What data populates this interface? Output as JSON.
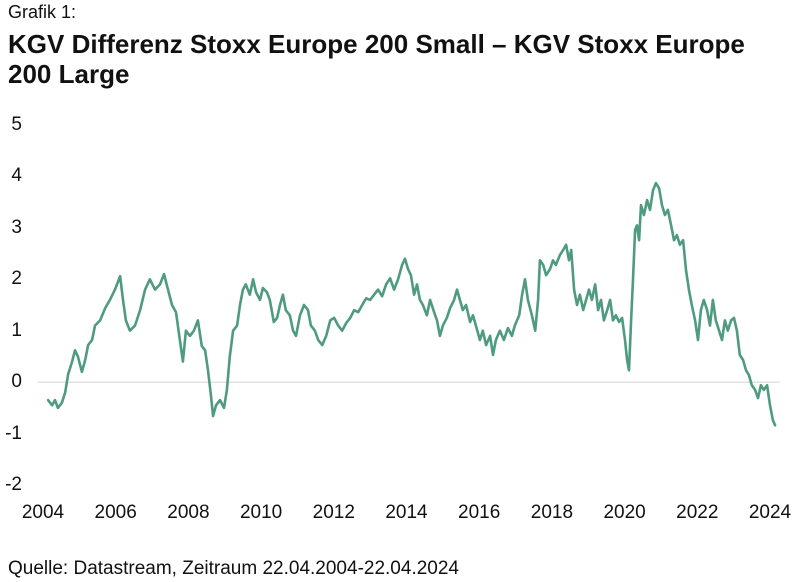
{
  "header": {
    "figure_label": "Grafik 1:"
  },
  "footer": {
    "source": "Quelle: Datastream, Zeitraum 22.04.2004-22.04.2024"
  },
  "colors": {
    "line": "#4e9b80",
    "zero_line": "#e3e3e3",
    "text": "#111111"
  },
  "chart_data": {
    "type": "line",
    "title": "KGV Differenz Stoxx Europe 200 Small – KGV Stoxx Europe 200 Large",
    "xlabel": "",
    "ylabel": "",
    "xlim": [
      2004,
      2024
    ],
    "ylim": [
      -2,
      5
    ],
    "grid": false,
    "zero_line": true,
    "legend": "none",
    "x_ticks": [
      2004,
      2006,
      2008,
      2010,
      2012,
      2014,
      2016,
      2018,
      2020,
      2022,
      2024
    ],
    "x_tick_labels": [
      "2004",
      "2006",
      "2008",
      "2010",
      "2012",
      "2014",
      "2016",
      "2018",
      "2020",
      "2022",
      "2024"
    ],
    "y_ticks": [
      5,
      4,
      3,
      2,
      1,
      0,
      -1,
      -2
    ],
    "y_tick_labels": [
      "5",
      "4",
      "3",
      "2",
      "1",
      "0",
      "-1",
      "-2"
    ],
    "series": [
      {
        "color": "#4e9b80",
        "x": [
          2004.14,
          2004.25,
          2004.33,
          2004.41,
          2004.52,
          2004.61,
          2004.69,
          2004.8,
          2004.88,
          2004.96,
          2005.07,
          2005.16,
          2005.24,
          2005.35,
          2005.43,
          2005.57,
          2005.71,
          2005.84,
          2005.98,
          2006.12,
          2006.2,
          2006.28,
          2006.39,
          2006.53,
          2006.67,
          2006.81,
          2006.94,
          2007.08,
          2007.22,
          2007.33,
          2007.44,
          2007.55,
          2007.66,
          2007.77,
          2007.85,
          2007.93,
          2008.04,
          2008.15,
          2008.26,
          2008.37,
          2008.46,
          2008.54,
          2008.62,
          2008.68,
          2008.76,
          2008.87,
          2008.98,
          2009.06,
          2009.14,
          2009.23,
          2009.34,
          2009.42,
          2009.5,
          2009.58,
          2009.69,
          2009.78,
          2009.86,
          2009.97,
          2010.05,
          2010.16,
          2010.24,
          2010.35,
          2010.44,
          2010.52,
          2010.6,
          2010.68,
          2010.79,
          2010.88,
          2010.96,
          2011.07,
          2011.18,
          2011.29,
          2011.37,
          2011.48,
          2011.57,
          2011.68,
          2011.79,
          2011.9,
          2012.01,
          2012.12,
          2012.23,
          2012.34,
          2012.45,
          2012.56,
          2012.67,
          2012.78,
          2012.89,
          2013.0,
          2013.11,
          2013.22,
          2013.33,
          2013.44,
          2013.55,
          2013.66,
          2013.77,
          2013.88,
          2013.96,
          2014.04,
          2014.12,
          2014.21,
          2014.29,
          2014.37,
          2014.45,
          2014.56,
          2014.65,
          2014.76,
          2014.84,
          2014.92,
          2015.0,
          2015.11,
          2015.2,
          2015.31,
          2015.39,
          2015.47,
          2015.55,
          2015.64,
          2015.75,
          2015.83,
          2015.91,
          2016.02,
          2016.1,
          2016.19,
          2016.3,
          2016.38,
          2016.46,
          2016.57,
          2016.68,
          2016.79,
          2016.9,
          2016.98,
          2017.1,
          2017.18,
          2017.26,
          2017.34,
          2017.45,
          2017.54,
          2017.62,
          2017.67,
          2017.76,
          2017.84,
          2017.95,
          2018.03,
          2018.11,
          2018.22,
          2018.31,
          2018.39,
          2018.47,
          2018.53,
          2018.61,
          2018.69,
          2018.77,
          2018.86,
          2018.94,
          2019.02,
          2019.1,
          2019.19,
          2019.27,
          2019.35,
          2019.43,
          2019.52,
          2019.6,
          2019.68,
          2019.76,
          2019.85,
          2019.93,
          2020.01,
          2020.07,
          2020.12,
          2020.18,
          2020.23,
          2020.29,
          2020.34,
          2020.4,
          2020.45,
          2020.53,
          2020.62,
          2020.7,
          2020.78,
          2020.86,
          2020.95,
          2021.03,
          2021.11,
          2021.19,
          2021.28,
          2021.36,
          2021.44,
          2021.52,
          2021.61,
          2021.69,
          2021.77,
          2021.85,
          2021.94,
          2022.02,
          2022.1,
          2022.18,
          2022.27,
          2022.35,
          2022.43,
          2022.51,
          2022.6,
          2022.68,
          2022.76,
          2022.84,
          2022.93,
          2023.01,
          2023.09,
          2023.17,
          2023.26,
          2023.34,
          2023.42,
          2023.5,
          2023.59,
          2023.67,
          2023.75,
          2023.83,
          2023.92,
          2024.0,
          2024.08,
          2024.14
        ],
        "y": [
          -0.35,
          -0.45,
          -0.35,
          -0.5,
          -0.4,
          -0.2,
          0.15,
          0.4,
          0.62,
          0.5,
          0.2,
          0.43,
          0.72,
          0.82,
          1.1,
          1.2,
          1.44,
          1.6,
          1.8,
          2.06,
          1.6,
          1.2,
          1.0,
          1.1,
          1.4,
          1.8,
          2.0,
          1.8,
          1.9,
          2.1,
          1.8,
          1.5,
          1.36,
          0.8,
          0.4,
          1.0,
          0.9,
          1.0,
          1.2,
          0.7,
          0.62,
          0.23,
          -0.25,
          -0.66,
          -0.45,
          -0.35,
          -0.5,
          -0.15,
          0.5,
          1.0,
          1.1,
          1.5,
          1.8,
          1.9,
          1.7,
          2.0,
          1.75,
          1.6,
          1.83,
          1.75,
          1.6,
          1.17,
          1.25,
          1.5,
          1.7,
          1.4,
          1.3,
          1.0,
          0.9,
          1.3,
          1.5,
          1.4,
          1.1,
          1.0,
          0.82,
          0.72,
          0.9,
          1.2,
          1.25,
          1.1,
          1.0,
          1.15,
          1.25,
          1.4,
          1.36,
          1.5,
          1.63,
          1.6,
          1.7,
          1.8,
          1.67,
          1.9,
          2.02,
          1.8,
          2.0,
          2.28,
          2.4,
          2.2,
          2.08,
          1.7,
          1.9,
          1.6,
          1.5,
          1.3,
          1.6,
          1.36,
          1.2,
          0.9,
          1.1,
          1.25,
          1.44,
          1.6,
          1.8,
          1.6,
          1.4,
          1.5,
          1.17,
          1.3,
          1.1,
          0.82,
          1.0,
          0.72,
          0.9,
          0.53,
          0.82,
          1.0,
          0.82,
          1.05,
          0.9,
          1.1,
          1.3,
          1.7,
          2.0,
          1.6,
          1.3,
          1.0,
          1.6,
          2.37,
          2.28,
          2.08,
          2.2,
          2.37,
          2.28,
          2.47,
          2.57,
          2.67,
          2.37,
          2.57,
          1.8,
          1.5,
          1.7,
          1.4,
          1.6,
          1.8,
          1.6,
          1.9,
          1.4,
          1.6,
          1.2,
          1.4,
          1.6,
          1.2,
          1.3,
          1.17,
          1.25,
          0.82,
          0.43,
          0.23,
          1.2,
          2.0,
          2.96,
          3.05,
          2.76,
          3.44,
          3.25,
          3.54,
          3.35,
          3.73,
          3.87,
          3.77,
          3.44,
          3.25,
          3.35,
          3.05,
          2.76,
          2.86,
          2.67,
          2.76,
          2.18,
          1.8,
          1.5,
          1.2,
          0.82,
          1.4,
          1.6,
          1.4,
          1.1,
          1.6,
          1.2,
          1.0,
          0.82,
          1.2,
          1.0,
          1.2,
          1.25,
          1.0,
          0.53,
          0.43,
          0.23,
          0.14,
          -0.06,
          -0.15,
          -0.31,
          -0.06,
          -0.15,
          -0.06,
          -0.45,
          -0.74,
          -0.84
        ]
      }
    ]
  }
}
